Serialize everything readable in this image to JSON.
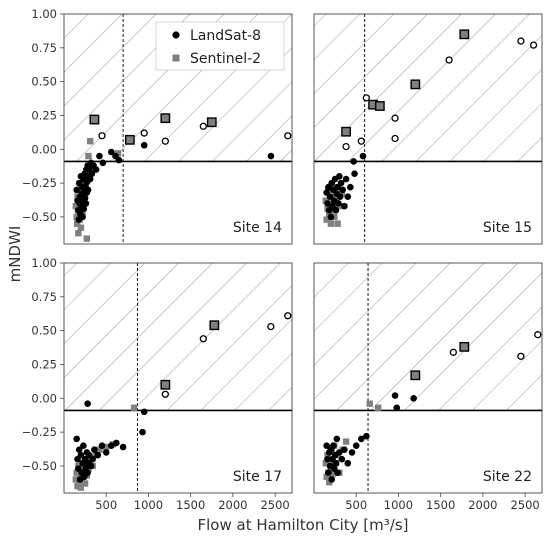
{
  "chart_data": {
    "type": "scatter",
    "xlabel": "Flow at Hamilton City [m³/s]",
    "ylabel": "mNDWI",
    "xlim": [
      0,
      2700
    ],
    "ylim": [
      -0.7,
      1.0
    ],
    "xticks": [
      500,
      1000,
      1500,
      2000,
      2500
    ],
    "yticks": [
      -0.5,
      -0.25,
      0.0,
      0.25,
      0.5,
      0.75,
      1.0
    ],
    "xtick_labels": [
      "500",
      "1000",
      "1500",
      "2000",
      "2500"
    ],
    "ytick_labels": [
      "−0.50",
      "−0.25",
      "0.00",
      "0.25",
      "0.50",
      "0.75",
      "1.00"
    ],
    "grid": false,
    "legend": {
      "placement": "top-right of first panel",
      "entries": [
        {
          "name": "LandSat-8",
          "marker": "circle",
          "color": "#000000"
        },
        {
          "name": "Sentinel-2",
          "marker": "square",
          "color": "#808080"
        }
      ]
    },
    "shared": {
      "threshold_y": -0.09
    },
    "panels": [
      {
        "title": "Site 14",
        "threshold_x": 700,
        "landsat_low": [
          [
            150,
            -0.3
          ],
          [
            160,
            -0.38
          ],
          [
            170,
            -0.45
          ],
          [
            175,
            -0.52
          ],
          [
            180,
            -0.25
          ],
          [
            185,
            -0.4
          ],
          [
            190,
            -0.35
          ],
          [
            195,
            -0.48
          ],
          [
            200,
            -0.2
          ],
          [
            205,
            -0.42
          ],
          [
            210,
            -0.33
          ],
          [
            215,
            -0.28
          ],
          [
            220,
            -0.5
          ],
          [
            225,
            -0.38
          ],
          [
            230,
            -0.22
          ],
          [
            235,
            -0.44
          ],
          [
            240,
            -0.31
          ],
          [
            245,
            -0.18
          ],
          [
            250,
            -0.36
          ],
          [
            255,
            -0.27
          ],
          [
            260,
            -0.4
          ],
          [
            265,
            -0.15
          ],
          [
            270,
            -0.32
          ],
          [
            275,
            -0.24
          ],
          [
            280,
            -0.12
          ],
          [
            285,
            -0.3
          ],
          [
            290,
            -0.2
          ],
          [
            300,
            -0.15
          ],
          [
            310,
            -0.22
          ],
          [
            320,
            -0.1
          ],
          [
            330,
            -0.18
          ],
          [
            350,
            -0.12
          ],
          [
            380,
            -0.15
          ],
          [
            420,
            -0.05
          ],
          [
            460,
            -0.1
          ],
          [
            560,
            -0.02
          ],
          [
            610,
            -0.05
          ],
          [
            650,
            -0.08
          ]
        ],
        "landsat_high": [
          [
            950,
            0.03
          ],
          [
            2450,
            -0.05
          ]
        ],
        "landsat_open": [
          [
            450,
            0.1
          ],
          [
            780,
            0.07
          ],
          [
            950,
            0.12
          ],
          [
            1200,
            0.06
          ],
          [
            1650,
            0.17
          ],
          [
            2650,
            0.1
          ]
        ],
        "sentinel_low": [
          [
            140,
            -0.42
          ],
          [
            150,
            -0.5
          ],
          [
            155,
            -0.55
          ],
          [
            160,
            -0.35
          ],
          [
            165,
            -0.45
          ],
          [
            170,
            -0.62
          ],
          [
            175,
            -0.4
          ],
          [
            180,
            -0.3
          ],
          [
            185,
            -0.52
          ],
          [
            190,
            -0.46
          ],
          [
            195,
            -0.38
          ],
          [
            200,
            -0.58
          ],
          [
            205,
            -0.28
          ],
          [
            210,
            -0.43
          ],
          [
            215,
            -0.35
          ],
          [
            220,
            -0.48
          ],
          [
            225,
            -0.25
          ],
          [
            230,
            -0.4
          ],
          [
            240,
            -0.32
          ],
          [
            250,
            -0.22
          ],
          [
            270,
            -0.66
          ],
          [
            290,
            -0.05
          ],
          [
            310,
            0.06
          ],
          [
            640,
            -0.03
          ]
        ],
        "sentinel_outlined": [
          [
            360,
            0.22
          ],
          [
            780,
            0.07
          ],
          [
            1200,
            0.23
          ],
          [
            1750,
            0.2
          ]
        ]
      },
      {
        "title": "Site 15",
        "threshold_x": 600,
        "landsat_low": [
          [
            150,
            -0.32
          ],
          [
            160,
            -0.4
          ],
          [
            170,
            -0.28
          ],
          [
            180,
            -0.45
          ],
          [
            190,
            -0.35
          ],
          [
            200,
            -0.5
          ],
          [
            210,
            -0.25
          ],
          [
            220,
            -0.42
          ],
          [
            230,
            -0.3
          ],
          [
            240,
            -0.38
          ],
          [
            250,
            -0.22
          ],
          [
            260,
            -0.45
          ],
          [
            270,
            -0.33
          ],
          [
            280,
            -0.28
          ],
          [
            290,
            -0.4
          ],
          [
            300,
            -0.2
          ],
          [
            310,
            -0.35
          ],
          [
            320,
            -0.25
          ],
          [
            340,
            -0.3
          ],
          [
            360,
            -0.42
          ],
          [
            380,
            -0.22
          ],
          [
            400,
            -0.35
          ],
          [
            430,
            -0.28
          ],
          [
            470,
            -0.09
          ],
          [
            480,
            -0.18
          ]
        ],
        "landsat_high": [
          [
            580,
            -0.05
          ]
        ],
        "landsat_open": [
          [
            380,
            0.02
          ],
          [
            560,
            0.06
          ],
          [
            620,
            0.38
          ],
          [
            700,
            0.33
          ],
          [
            960,
            0.23
          ],
          [
            960,
            0.08
          ],
          [
            1600,
            0.66
          ],
          [
            2450,
            0.8
          ],
          [
            2600,
            0.77
          ]
        ],
        "sentinel_low": [
          [
            140,
            -0.38
          ],
          [
            150,
            -0.52
          ],
          [
            160,
            -0.44
          ],
          [
            170,
            -0.3
          ],
          [
            180,
            -0.48
          ],
          [
            190,
            -0.4
          ],
          [
            200,
            -0.55
          ],
          [
            210,
            -0.35
          ],
          [
            220,
            -0.45
          ],
          [
            230,
            -0.28
          ],
          [
            240,
            -0.5
          ],
          [
            260,
            -0.38
          ],
          [
            280,
            -0.55
          ],
          [
            300,
            -0.42
          ],
          [
            330,
            -0.32
          ]
        ],
        "sentinel_outlined": [
          [
            380,
            0.13
          ],
          [
            700,
            0.33
          ],
          [
            780,
            0.32
          ],
          [
            1200,
            0.48
          ],
          [
            1780,
            0.85
          ]
        ]
      },
      {
        "title": "Site 17",
        "threshold_x": 870,
        "landsat_low": [
          [
            150,
            -0.3
          ],
          [
            160,
            -0.45
          ],
          [
            170,
            -0.52
          ],
          [
            180,
            -0.38
          ],
          [
            190,
            -0.6
          ],
          [
            200,
            -0.42
          ],
          [
            210,
            -0.55
          ],
          [
            220,
            -0.48
          ],
          [
            230,
            -0.35
          ],
          [
            240,
            -0.58
          ],
          [
            250,
            -0.45
          ],
          [
            260,
            -0.52
          ],
          [
            270,
            -0.4
          ],
          [
            280,
            -0.55
          ],
          [
            290,
            -0.48
          ],
          [
            300,
            -0.42
          ],
          [
            320,
            -0.5
          ],
          [
            340,
            -0.45
          ],
          [
            360,
            -0.38
          ],
          [
            400,
            -0.42
          ],
          [
            450,
            -0.35
          ],
          [
            500,
            -0.4
          ],
          [
            560,
            -0.35
          ],
          [
            620,
            -0.33
          ],
          [
            700,
            -0.36
          ]
        ],
        "landsat_high": [
          [
            280,
            -0.04
          ],
          [
            930,
            -0.25
          ],
          [
            950,
            -0.1
          ]
        ],
        "landsat_open": [
          [
            1200,
            0.03
          ],
          [
            1650,
            0.44
          ],
          [
            2450,
            0.53
          ],
          [
            2650,
            0.61
          ]
        ],
        "sentinel_low": [
          [
            140,
            -0.6
          ],
          [
            150,
            -0.55
          ],
          [
            160,
            -0.65
          ],
          [
            170,
            -0.5
          ],
          [
            180,
            -0.62
          ],
          [
            190,
            -0.58
          ],
          [
            200,
            -0.66
          ],
          [
            210,
            -0.52
          ],
          [
            220,
            -0.6
          ],
          [
            230,
            -0.55
          ],
          [
            240,
            -0.48
          ],
          [
            250,
            -0.63
          ],
          [
            270,
            -0.57
          ],
          [
            290,
            -0.52
          ],
          [
            310,
            -0.45
          ],
          [
            340,
            -0.5
          ],
          [
            380,
            -0.42
          ],
          [
            420,
            -0.38
          ],
          [
            500,
            -0.36
          ],
          [
            580,
            -0.34
          ],
          [
            830,
            -0.07
          ]
        ],
        "sentinel_outlined": [
          [
            1200,
            0.1
          ],
          [
            1780,
            0.54
          ]
        ]
      },
      {
        "title": "Site 22",
        "threshold_x": 640,
        "landsat_low": [
          [
            150,
            -0.35
          ],
          [
            160,
            -0.45
          ],
          [
            170,
            -0.55
          ],
          [
            180,
            -0.4
          ],
          [
            190,
            -0.5
          ],
          [
            200,
            -0.38
          ],
          [
            210,
            -0.6
          ],
          [
            220,
            -0.45
          ],
          [
            230,
            -0.35
          ],
          [
            240,
            -0.52
          ],
          [
            250,
            -0.42
          ],
          [
            260,
            -0.48
          ],
          [
            270,
            -0.3
          ],
          [
            280,
            -0.55
          ],
          [
            300,
            -0.4
          ],
          [
            330,
            -0.45
          ],
          [
            360,
            -0.38
          ],
          [
            400,
            -0.48
          ],
          [
            450,
            -0.4
          ],
          [
            500,
            -0.35
          ],
          [
            560,
            -0.3
          ],
          [
            620,
            -0.28
          ]
        ],
        "landsat_high": [
          [
            960,
            0.02
          ],
          [
            980,
            -0.07
          ],
          [
            1180,
            0.0
          ]
        ],
        "landsat_open": [
          [
            1650,
            0.34
          ],
          [
            2450,
            0.31
          ],
          [
            2650,
            0.47
          ]
        ],
        "sentinel_low": [
          [
            140,
            -0.48
          ],
          [
            150,
            -0.58
          ],
          [
            160,
            -0.42
          ],
          [
            170,
            -0.55
          ],
          [
            180,
            -0.62
          ],
          [
            190,
            -0.45
          ],
          [
            200,
            -0.52
          ],
          [
            210,
            -0.38
          ],
          [
            220,
            -0.56
          ],
          [
            230,
            -0.5
          ],
          [
            240,
            -0.35
          ],
          [
            260,
            -0.48
          ],
          [
            280,
            -0.42
          ],
          [
            300,
            -0.55
          ],
          [
            340,
            -0.38
          ],
          [
            380,
            -0.32
          ],
          [
            660,
            -0.04
          ],
          [
            760,
            -0.07
          ]
        ],
        "sentinel_outlined": [
          [
            1200,
            0.17
          ],
          [
            1780,
            0.38
          ]
        ]
      }
    ]
  }
}
